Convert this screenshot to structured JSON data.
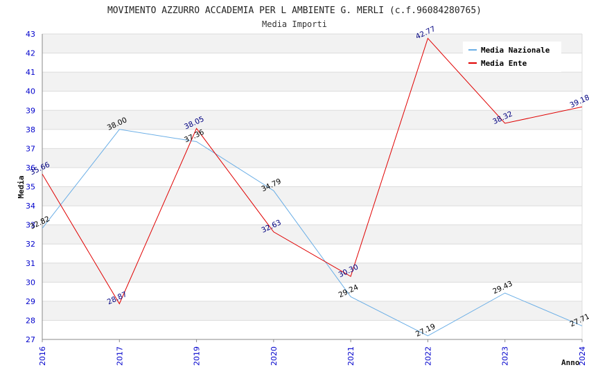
{
  "chart_data": {
    "type": "line",
    "title": "MOVIMENTO AZZURRO ACCADEMIA PER L AMBIENTE G. MERLI (c.f.96084280765)",
    "subtitle": "Media Importi",
    "xlabel": "Anno",
    "ylabel": "Media",
    "categories": [
      "2016",
      "2017",
      "2019",
      "2020",
      "2021",
      "2022",
      "2023",
      "2024"
    ],
    "ylim": [
      27,
      43
    ],
    "yticks": [
      "27",
      "28",
      "29",
      "30",
      "31",
      "32",
      "33",
      "34",
      "35",
      "36",
      "37",
      "38",
      "39",
      "40",
      "41",
      "42",
      "43"
    ],
    "grid": true,
    "legend_position": "top-right",
    "series": [
      {
        "name": "Media Nazionale",
        "color": "#6aaee6",
        "label_color": "#000000",
        "values": [
          32.82,
          38.0,
          37.36,
          34.79,
          29.24,
          27.19,
          29.43,
          27.71
        ],
        "labels": [
          "32.82",
          "38.00",
          "37.36",
          "34.79",
          "29.24",
          "27.19",
          "29.43",
          "27.71"
        ]
      },
      {
        "name": "Media Ente",
        "color": "#e00000",
        "label_color": "#000080",
        "values": [
          35.66,
          28.87,
          38.05,
          32.63,
          30.3,
          42.77,
          38.32,
          39.18
        ],
        "labels": [
          "35.66",
          "28.87",
          "38.05",
          "32.63",
          "30.30",
          "42.77",
          "38.32",
          "39.18"
        ]
      }
    ]
  }
}
